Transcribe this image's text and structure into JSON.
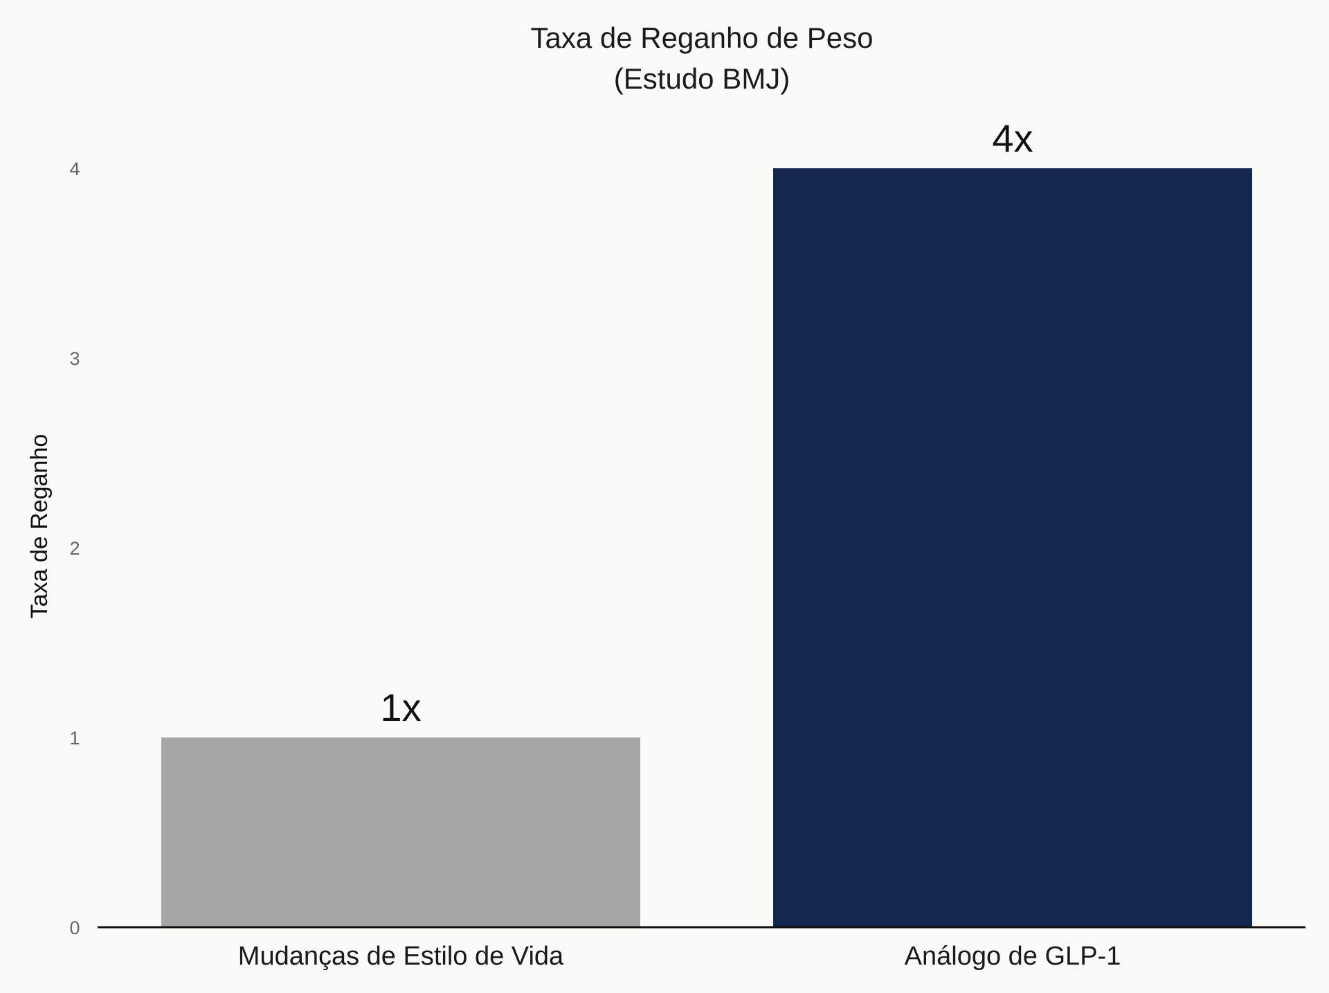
{
  "chart_data": {
    "type": "bar",
    "title": [
      "Taxa de Reganho de Peso",
      "(Estudo BMJ)"
    ],
    "xlabel": "",
    "ylabel": "Taxa de Reganho",
    "categories": [
      "Mudanças de Estilo de Vida",
      "Análogo de GLP-1"
    ],
    "values": [
      1,
      4
    ],
    "data_labels": [
      "1x",
      "4x"
    ],
    "colors": [
      "#a6a6a6",
      "#14284f"
    ],
    "ylim": [
      0,
      4
    ],
    "yticks": [
      "0",
      "1",
      "2",
      "3",
      "4"
    ],
    "grid": false,
    "legend": "none"
  }
}
